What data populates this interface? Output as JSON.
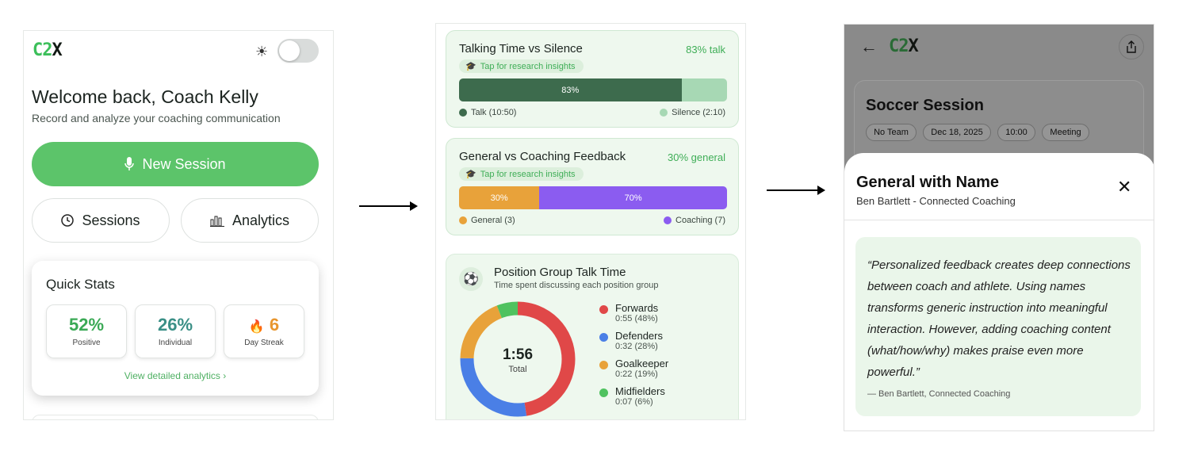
{
  "screen1": {
    "logo": {
      "c2": "C2",
      "x": "X"
    },
    "welcome": "Welcome back, Coach Kelly",
    "subtitle": "Record and analyze your coaching communication",
    "new_session_label": "New Session",
    "sessions_label": "Sessions",
    "analytics_label": "Analytics",
    "quick_stats": {
      "title": "Quick Stats",
      "stats": [
        {
          "value": "52%",
          "label": "Positive",
          "color": "#3aa955"
        },
        {
          "value": "26%",
          "label": "Individual",
          "color": "#3a8f86"
        },
        {
          "value": "6",
          "label": "Day Streak",
          "color": "#e8962e"
        }
      ],
      "link": "View detailed analytics"
    },
    "colors": {
      "accent": "#5cc46a"
    }
  },
  "screen2": {
    "talk_card": {
      "title": "Talking Time vs Silence",
      "percent_label": "83% talk",
      "tap": "Tap for research insights",
      "talk_pct": 83,
      "bar_label": "83%",
      "talk_legend": "Talk (10:50)",
      "silence_legend": "Silence (2:10)",
      "talk_color": "#3d6b4d",
      "silence_color": "#a7d8b4"
    },
    "feedback_card": {
      "title": "General vs Coaching Feedback",
      "percent_label": "30% general",
      "tap": "Tap for research insights",
      "general_pct": 30,
      "general_bar_label": "30%",
      "coaching_bar_label": "70%",
      "general_legend": "General (3)",
      "coaching_legend": "Coaching (7)",
      "general_color": "#e8a23a",
      "coaching_color": "#8b5cf0"
    },
    "position_card": {
      "title": "Position Group Talk Time",
      "subtitle": "Time spent discussing each position group",
      "total_value": "1:56",
      "total_label": "Total",
      "groups": [
        {
          "name": "Forwards",
          "detail": "0:55 (48%)",
          "pct": 48,
          "color": "#e04848"
        },
        {
          "name": "Defenders",
          "detail": "0:32 (28%)",
          "pct": 28,
          "color": "#4a7fe6"
        },
        {
          "name": "Goalkeeper",
          "detail": "0:22 (19%)",
          "pct": 19,
          "color": "#e8a23a"
        },
        {
          "name": "Midfielders",
          "detail": "0:07 (6%)",
          "pct": 6,
          "color": "#4fc25f"
        }
      ]
    }
  },
  "screen3": {
    "logo": {
      "c2": "C2",
      "x": "X"
    },
    "session_title": "Soccer Session",
    "chips": [
      "No Team",
      "Dec 18, 2025",
      "10:00",
      "Meeting"
    ],
    "sheet": {
      "title": "General with Name",
      "subtitle": "Ben Bartlett - Connected Coaching",
      "quote": "“Personalized feedback creates deep connections between coach and athlete. Using names transforms generic instruction into meaningful interaction. However, adding coaching content (what/how/why) makes praise even more powerful.”",
      "cite": "— Ben Bartlett, Connected Coaching"
    }
  }
}
